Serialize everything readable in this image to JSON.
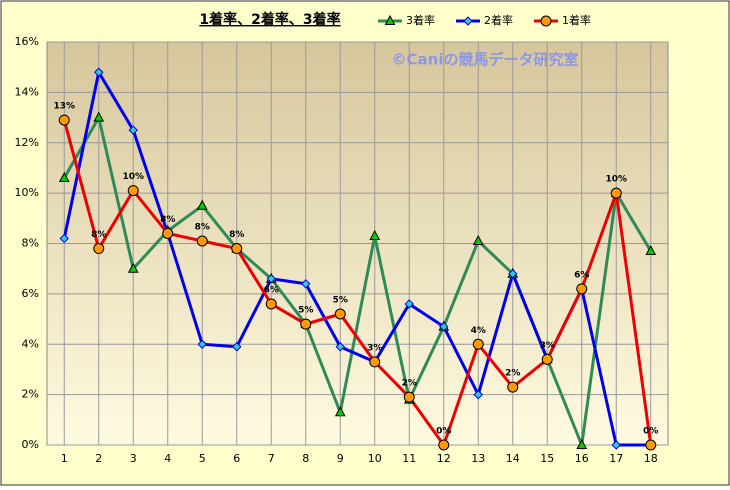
{
  "chart_data": {
    "type": "line",
    "title": "1着率、2着率、3着率",
    "watermark": "©Caniの競馬データ研究室",
    "categories": [
      "1",
      "2",
      "3",
      "4",
      "5",
      "6",
      "7",
      "8",
      "9",
      "10",
      "11",
      "12",
      "13",
      "14",
      "15",
      "16",
      "17",
      "18"
    ],
    "series": [
      {
        "name": "3着率",
        "color": "#2e8b57",
        "marker": "triangle",
        "marker_fill": "#00cc00",
        "values": [
          10.6,
          13.0,
          7.0,
          8.5,
          9.5,
          7.8,
          6.6,
          4.8,
          1.3,
          8.3,
          1.8,
          4.7,
          8.1,
          6.8,
          3.4,
          0.0,
          10.0,
          7.7
        ]
      },
      {
        "name": "2着率",
        "color": "#0000ee",
        "marker": "diamond",
        "marker_fill": "#33cccc",
        "values": [
          8.2,
          14.8,
          12.5,
          8.4,
          4.0,
          3.9,
          6.6,
          6.4,
          3.9,
          3.3,
          5.6,
          4.7,
          2.0,
          6.8,
          3.4,
          6.2,
          0.0,
          0.0
        ]
      },
      {
        "name": "1着率",
        "color": "#ee0000",
        "marker": "circle",
        "marker_fill": "#ff9900",
        "values": [
          12.9,
          7.8,
          10.1,
          8.4,
          8.1,
          7.8,
          5.6,
          4.8,
          5.2,
          3.3,
          1.9,
          0.0,
          4.0,
          2.3,
          3.4,
          6.2,
          10.0,
          0.0
        ],
        "value_labels": [
          "13%",
          "8%",
          "10%",
          "8%",
          "8%",
          "8%",
          "6%",
          "5%",
          "5%",
          "3%",
          "2%",
          "0%",
          "4%",
          "2%",
          "3%",
          "6%",
          "10%",
          "0%"
        ]
      }
    ],
    "ylim": [
      0,
      16
    ],
    "yticks": [
      {
        "value": 0,
        "label": "0%"
      },
      {
        "value": 2,
        "label": "2%"
      },
      {
        "value": 4,
        "label": "4%"
      },
      {
        "value": 6,
        "label": "6%"
      },
      {
        "value": 8,
        "label": "8%"
      },
      {
        "value": 10,
        "label": "10%"
      },
      {
        "value": 12,
        "label": "12%"
      },
      {
        "value": 14,
        "label": "14%"
      },
      {
        "value": 16,
        "label": "16%"
      }
    ],
    "grid": true
  }
}
